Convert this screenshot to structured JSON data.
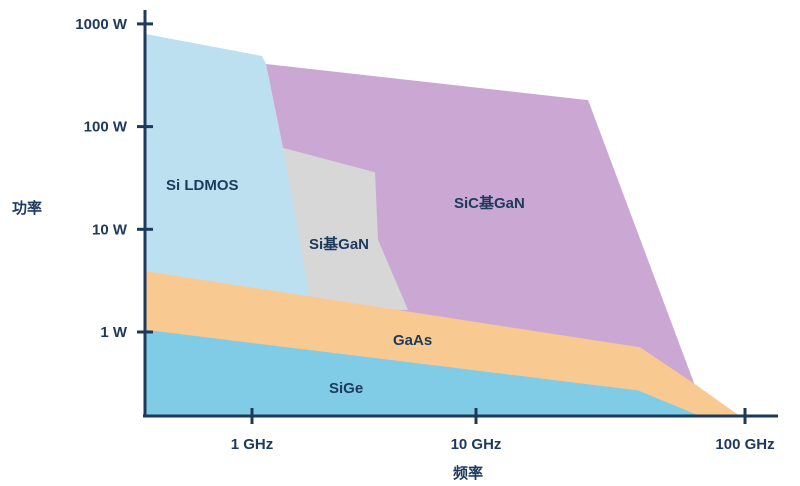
{
  "chart_data": {
    "type": "area",
    "title": "",
    "xlabel": "频率",
    "ylabel": "功率",
    "xscale": "log",
    "yscale": "log",
    "xlim_ghz": [
      0.333,
      129
    ],
    "ylim_w": [
      0.152,
      1000
    ],
    "grid": false,
    "x_ticks": [
      {
        "value": 1,
        "label": "1 GHz"
      },
      {
        "value": 10,
        "label": "10 GHz"
      },
      {
        "value": 100,
        "label": "100 GHz"
      }
    ],
    "y_ticks": [
      {
        "value": 1,
        "label": "1 W"
      },
      {
        "value": 10,
        "label": "10 W"
      },
      {
        "value": 100,
        "label": "100 W"
      },
      {
        "value": 1000,
        "label": "1000 W"
      }
    ],
    "regions": [
      {
        "name": "Si LDMOS",
        "color": "#bde0f0",
        "points_ghz_w": [
          [
            0.333,
            800
          ],
          [
            1.108,
            487
          ],
          [
            1.155,
            407
          ],
          [
            1.375,
            62
          ],
          [
            1.93,
            2.29
          ],
          [
            1.93,
            0.152
          ],
          [
            0.333,
            0.152
          ]
        ]
      },
      {
        "name": "SiC基GaN",
        "color": "#caa8d3",
        "points_ghz_w": [
          [
            1.155,
            407
          ],
          [
            26.1,
            181
          ],
          [
            65.2,
            0.3
          ],
          [
            4.58,
            1.31
          ],
          [
            1.375,
            62
          ]
        ]
      },
      {
        "name": "Si基GaN",
        "color": "#d7d7d8",
        "points_ghz_w": [
          [
            1.375,
            62
          ],
          [
            3.54,
            36
          ],
          [
            3.65,
            7.9
          ],
          [
            4.97,
            1.64
          ],
          [
            1.85,
            1.64
          ]
        ]
      },
      {
        "name": "GaAs",
        "color": "#f8ca92",
        "points_ghz_w": [
          [
            0.333,
            3.93
          ],
          [
            40.7,
            0.71
          ],
          [
            65.2,
            0.31
          ],
          [
            95.7,
            0.152
          ],
          [
            0.333,
            0.152
          ]
        ]
      },
      {
        "name": "SiGe",
        "color": "#80cbe6",
        "points_ghz_w": [
          [
            0.333,
            1.05
          ],
          [
            40.0,
            0.27
          ],
          [
            68.0,
            0.152
          ],
          [
            0.333,
            0.152
          ]
        ]
      }
    ]
  }
}
